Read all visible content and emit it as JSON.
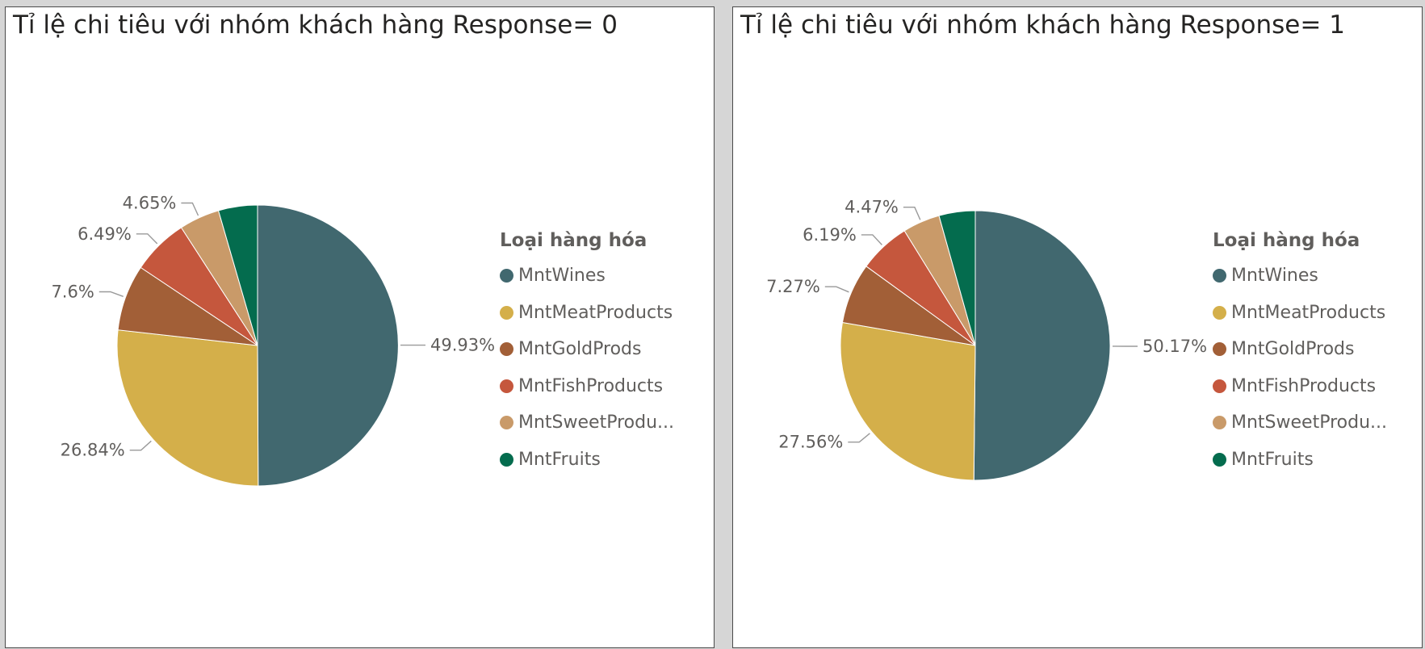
{
  "chart_data": [
    {
      "type": "pie",
      "title": "Tỉ lệ chi tiêu với nhóm khách hàng Response= 0",
      "legend_title": "Loại hàng hóa",
      "legend_placement": "right",
      "categories": [
        "MntWines",
        "MntMeatProducts",
        "MntGoldProds",
        "MntFishProducts",
        "MntSweetProducts",
        "MntFruits"
      ],
      "legend_labels": [
        "MntWines",
        "MntMeatProducts",
        "MntGoldProds",
        "MntFishProducts",
        "MntSweetProdu...",
        "MntFruits"
      ],
      "values": [
        49.93,
        26.84,
        7.6,
        6.49,
        4.65,
        4.49
      ],
      "data_labels": [
        "49.93%",
        "26.84%",
        "7.6%",
        "6.49%",
        "4.65%",
        ""
      ],
      "colors": [
        "#41686f",
        "#d4af4a",
        "#a25f37",
        "#c5573d",
        "#c99a69",
        "#046c4e"
      ]
    },
    {
      "type": "pie",
      "title": "Tỉ lệ chi tiêu với nhóm khách hàng Response= 1",
      "legend_title": "Loại hàng hóa",
      "legend_placement": "right",
      "categories": [
        "MntWines",
        "MntMeatProducts",
        "MntGoldProds",
        "MntFishProducts",
        "MntSweetProducts",
        "MntFruits"
      ],
      "legend_labels": [
        "MntWines",
        "MntMeatProducts",
        "MntGoldProds",
        "MntFishProducts",
        "MntSweetProdu...",
        "MntFruits"
      ],
      "values": [
        50.17,
        27.56,
        7.27,
        6.19,
        4.47,
        4.34
      ],
      "data_labels": [
        "50.17%",
        "27.56%",
        "7.27%",
        "6.19%",
        "4.47%",
        ""
      ],
      "colors": [
        "#41686f",
        "#d4af4a",
        "#a25f37",
        "#c5573d",
        "#c99a69",
        "#046c4e"
      ]
    }
  ]
}
